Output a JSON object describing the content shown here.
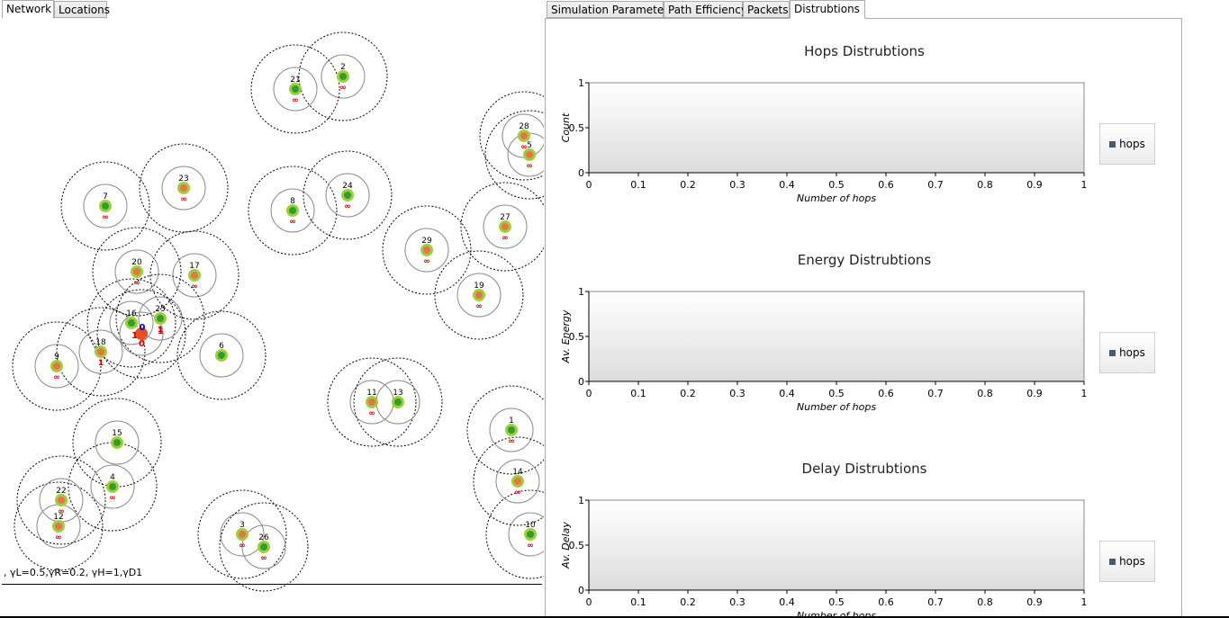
{
  "left_tabs": [
    "Network",
    "Locations"
  ],
  "right_tabs": [
    "Simulation Parameters",
    "Path Efficiency",
    "Packets",
    "Distrubtions"
  ],
  "status_text": ",  γL=0.5,γR=0.2, γH=1,γD1",
  "sink": {
    "label_top": "0",
    "label_left": "1",
    "label_right": "1",
    "label_bottom": "0"
  },
  "nodes": [
    {
      "id": "1",
      "label": "1",
      "sub": "∞",
      "type": "green"
    },
    {
      "id": "2",
      "label": "2",
      "sub": "∞",
      "type": "green"
    },
    {
      "id": "3",
      "label": "3",
      "sub": "∞",
      "type": "orange"
    },
    {
      "id": "4",
      "label": "4",
      "sub": "∞",
      "type": "green"
    },
    {
      "id": "5",
      "label": "5",
      "sub": "∞",
      "type": "orange"
    },
    {
      "id": "6",
      "label": "6",
      "sub": "",
      "type": "green"
    },
    {
      "id": "7",
      "label": "7",
      "sub": "∞",
      "type": "green"
    },
    {
      "id": "8",
      "label": "8",
      "sub": "∞",
      "type": "green"
    },
    {
      "id": "9",
      "label": "9",
      "sub": "∞",
      "type": "orange"
    },
    {
      "id": "10",
      "label": "10",
      "sub": "∞",
      "type": "green"
    },
    {
      "id": "11",
      "label": "11",
      "sub": "∞",
      "type": "orange"
    },
    {
      "id": "12",
      "label": "12",
      "sub": "∞",
      "type": "orange"
    },
    {
      "id": "13",
      "label": "13",
      "sub": "",
      "type": "green"
    },
    {
      "id": "14",
      "label": "14",
      "sub": "∞",
      "type": "orange"
    },
    {
      "id": "15",
      "label": "15",
      "sub": "",
      "type": "green"
    },
    {
      "id": "16",
      "label": "16",
      "sub": "",
      "type": "green"
    },
    {
      "id": "17",
      "label": "17",
      "sub": "∞",
      "type": "orange"
    },
    {
      "id": "18",
      "label": "18",
      "sub": "1",
      "type": "orange"
    },
    {
      "id": "19",
      "label": "19",
      "sub": "∞",
      "type": "orange"
    },
    {
      "id": "20",
      "label": "20",
      "sub": "∞",
      "type": "orange"
    },
    {
      "id": "21",
      "label": "21",
      "sub": "∞",
      "type": "green"
    },
    {
      "id": "22",
      "label": "22",
      "sub": "∞",
      "type": "orange"
    },
    {
      "id": "23",
      "label": "23",
      "sub": "∞",
      "type": "orange"
    },
    {
      "id": "24",
      "label": "24",
      "sub": "∞",
      "type": "green"
    },
    {
      "id": "25",
      "label": "25",
      "sub": "1",
      "type": "green"
    },
    {
      "id": "26",
      "label": "26",
      "sub": "∞",
      "type": "green"
    },
    {
      "id": "27",
      "label": "27",
      "sub": "∞",
      "type": "orange"
    },
    {
      "id": "28",
      "label": "28",
      "sub": "∞",
      "type": "orange"
    },
    {
      "id": "29",
      "label": "29",
      "sub": "∞",
      "type": "orange"
    }
  ],
  "charts": [
    {
      "title": "Hops Distrubtions",
      "ylabel": "Count",
      "xlabel": "Number of hops",
      "legend": "hops"
    },
    {
      "title": "Energy Distrubtions",
      "ylabel": "Av. Energy",
      "xlabel": "Number of hops",
      "legend": "hops"
    },
    {
      "title": "Delay Distrubtions",
      "ylabel": "Av. Delay",
      "xlabel": "Number of hops",
      "legend": "hops"
    }
  ],
  "chart_data": [
    {
      "type": "bar",
      "title": "Hops Distrubtions",
      "xlabel": "Number of hops",
      "ylabel": "Count",
      "xlim": [
        0,
        1
      ],
      "ylim": [
        0,
        1
      ],
      "xticks": [
        "0",
        "0.1",
        "0.2",
        "0.3",
        "0.4",
        "0.5",
        "0.6",
        "0.7",
        "0.8",
        "0.9",
        "1"
      ],
      "yticks": [
        "0",
        "0.5",
        "1"
      ],
      "series": [
        {
          "name": "hops",
          "values": []
        }
      ],
      "legend": "right",
      "grid": false
    },
    {
      "type": "bar",
      "title": "Energy Distrubtions",
      "xlabel": "Number of hops",
      "ylabel": "Av. Energy",
      "xlim": [
        0,
        1
      ],
      "ylim": [
        0,
        1
      ],
      "xticks": [
        "0",
        "0.1",
        "0.2",
        "0.3",
        "0.4",
        "0.5",
        "0.6",
        "0.7",
        "0.8",
        "0.9",
        "1"
      ],
      "yticks": [
        "0",
        "0.5",
        "1"
      ],
      "series": [
        {
          "name": "hops",
          "values": []
        }
      ],
      "legend": "right",
      "grid": false
    },
    {
      "type": "bar",
      "title": "Delay Distrubtions",
      "xlabel": "Number of hops",
      "ylabel": "Av. Delay",
      "xlim": [
        0,
        1
      ],
      "ylim": [
        0,
        1
      ],
      "xticks": [
        "0",
        "0.1",
        "0.2",
        "0.3",
        "0.4",
        "0.5",
        "0.6",
        "0.7",
        "0.8",
        "0.9",
        "1"
      ],
      "yticks": [
        "0",
        "0.5",
        "1"
      ],
      "series": [
        {
          "name": "hops",
          "values": []
        }
      ],
      "legend": "right",
      "grid": false
    }
  ],
  "colors": {
    "node_green": "#2e9e2e",
    "node_ring": "#9ecf3a",
    "node_orange": "#e8734a",
    "sink": "#e8501e",
    "label_red": "#cc0000",
    "label_blue": "#0000cc"
  }
}
